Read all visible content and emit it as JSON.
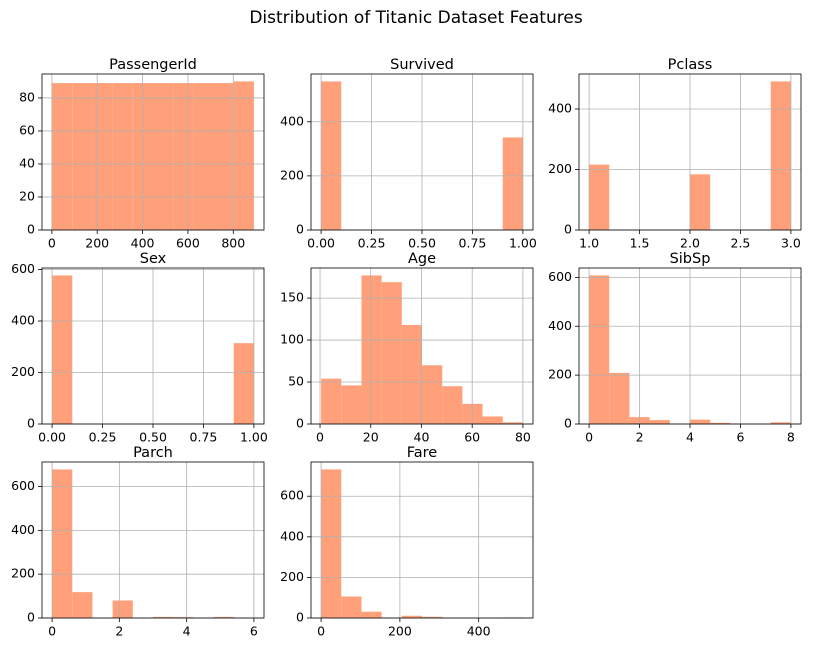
{
  "title": "Distribution of Titanic Dataset Features",
  "chart_data": [
    {
      "type": "histogram",
      "title": "PassengerId",
      "color": "#ffa07a",
      "grid": true,
      "bins": [
        1,
        90,
        179,
        268,
        357,
        446,
        535,
        624,
        713,
        802,
        891
      ],
      "values": [
        89,
        89,
        89,
        89,
        89,
        89,
        89,
        89,
        89,
        90
      ],
      "xlim": [
        -43.5,
        935.5
      ],
      "xticks": [
        0,
        200,
        400,
        600,
        800
      ],
      "ylim": [
        0,
        94.5
      ],
      "yticks": [
        0,
        20,
        40,
        60,
        80
      ]
    },
    {
      "type": "histogram",
      "title": "Survived",
      "color": "#ffa07a",
      "grid": true,
      "bins": [
        0,
        0.1,
        0.2,
        0.3,
        0.4,
        0.5,
        0.6,
        0.7,
        0.8,
        0.9,
        1
      ],
      "values": [
        549,
        0,
        0,
        0,
        0,
        0,
        0,
        0,
        0,
        342
      ],
      "xlim": [
        -0.05,
        1.05
      ],
      "xticks": [
        {
          "value": 0,
          "label": "0.00"
        },
        {
          "value": 0.25,
          "label": "0.25"
        },
        {
          "value": 0.5,
          "label": "0.50"
        },
        {
          "value": 0.75,
          "label": "0.75"
        },
        {
          "value": 1,
          "label": "1.00"
        }
      ],
      "ylim": [
        0,
        576.45
      ],
      "yticks": [
        0,
        200,
        400
      ]
    },
    {
      "type": "histogram",
      "title": "Pclass",
      "color": "#ffa07a",
      "grid": true,
      "bins": [
        1,
        1.2,
        1.4,
        1.6,
        1.8,
        2,
        2.2,
        2.4,
        2.6,
        2.8,
        3
      ],
      "values": [
        216,
        0,
        0,
        0,
        0,
        184,
        0,
        0,
        0,
        491
      ],
      "xlim": [
        0.9,
        3.1
      ],
      "xticks": [
        {
          "value": 1,
          "label": "1.0"
        },
        1.5,
        {
          "value": 2,
          "label": "2.0"
        },
        2.5,
        {
          "value": 3,
          "label": "3.0"
        }
      ],
      "ylim": [
        0,
        515.55
      ],
      "yticks": [
        0,
        200,
        400
      ]
    },
    {
      "type": "histogram",
      "title": "Sex",
      "color": "#ffa07a",
      "grid": true,
      "bins": [
        0,
        0.1,
        0.2,
        0.3,
        0.4,
        0.5,
        0.6,
        0.7,
        0.8,
        0.9,
        1
      ],
      "values": [
        577,
        0,
        0,
        0,
        0,
        0,
        0,
        0,
        0,
        314
      ],
      "xlim": [
        -0.05,
        1.05
      ],
      "xticks": [
        {
          "value": 0,
          "label": "0.00"
        },
        {
          "value": 0.25,
          "label": "0.25"
        },
        {
          "value": 0.5,
          "label": "0.50"
        },
        {
          "value": 0.75,
          "label": "0.75"
        },
        {
          "value": 1,
          "label": "1.00"
        }
      ],
      "ylim": [
        0,
        605.85
      ],
      "yticks": [
        0,
        200,
        400,
        600
      ]
    },
    {
      "type": "histogram",
      "title": "Age",
      "color": "#ffa07a",
      "grid": true,
      "bins": [
        0.42,
        8.378,
        16.336,
        24.294,
        32.252,
        40.21,
        48.168,
        56.126,
        64.084,
        72.042,
        80
      ],
      "values": [
        54,
        46,
        177,
        169,
        118,
        70,
        45,
        24,
        9,
        2
      ],
      "xlim": [
        -3.559,
        83.979
      ],
      "xticks": [
        0,
        20,
        40,
        60,
        80
      ],
      "ylim": [
        0,
        185.85
      ],
      "yticks": [
        0,
        50,
        100,
        150
      ]
    },
    {
      "type": "histogram",
      "title": "SibSp",
      "color": "#ffa07a",
      "grid": true,
      "bins": [
        0,
        0.8,
        1.6,
        2.4,
        3.2,
        4,
        4.8,
        5.6,
        6.4,
        7.2,
        8
      ],
      "values": [
        608,
        209,
        28,
        16,
        0,
        18,
        5,
        0,
        0,
        7
      ],
      "xlim": [
        -0.4,
        8.4
      ],
      "xticks": [
        0,
        2,
        4,
        6,
        8
      ],
      "ylim": [
        0,
        638.4
      ],
      "yticks": [
        0,
        200,
        400,
        600
      ]
    },
    {
      "type": "histogram",
      "title": "Parch",
      "color": "#ffa07a",
      "grid": true,
      "bins": [
        0,
        0.6,
        1.2,
        1.8,
        2.4,
        3,
        3.6,
        4.2,
        4.8,
        5.4,
        6
      ],
      "values": [
        678,
        118,
        0,
        80,
        0,
        5,
        4,
        0,
        5,
        1
      ],
      "xlim": [
        -0.3,
        6.3
      ],
      "xticks": [
        0,
        2,
        4,
        6
      ],
      "ylim": [
        0,
        711.9
      ],
      "yticks": [
        0,
        200,
        400,
        600
      ]
    },
    {
      "type": "histogram",
      "title": "Fare",
      "color": "#ffa07a",
      "grid": true,
      "bins": [
        0,
        51.23292,
        102.46584,
        153.69876,
        204.93168,
        256.1646,
        307.39752,
        358.63044,
        409.86336,
        461.09628,
        512.3292
      ],
      "values": [
        732,
        106,
        31,
        2,
        11,
        6,
        0,
        0,
        0,
        3
      ],
      "xlim": [
        -25.6165,
        537.9457
      ],
      "xticks": [
        0,
        200,
        400
      ],
      "ylim": [
        0,
        768.6
      ],
      "yticks": [
        0,
        200,
        400,
        600
      ]
    }
  ]
}
